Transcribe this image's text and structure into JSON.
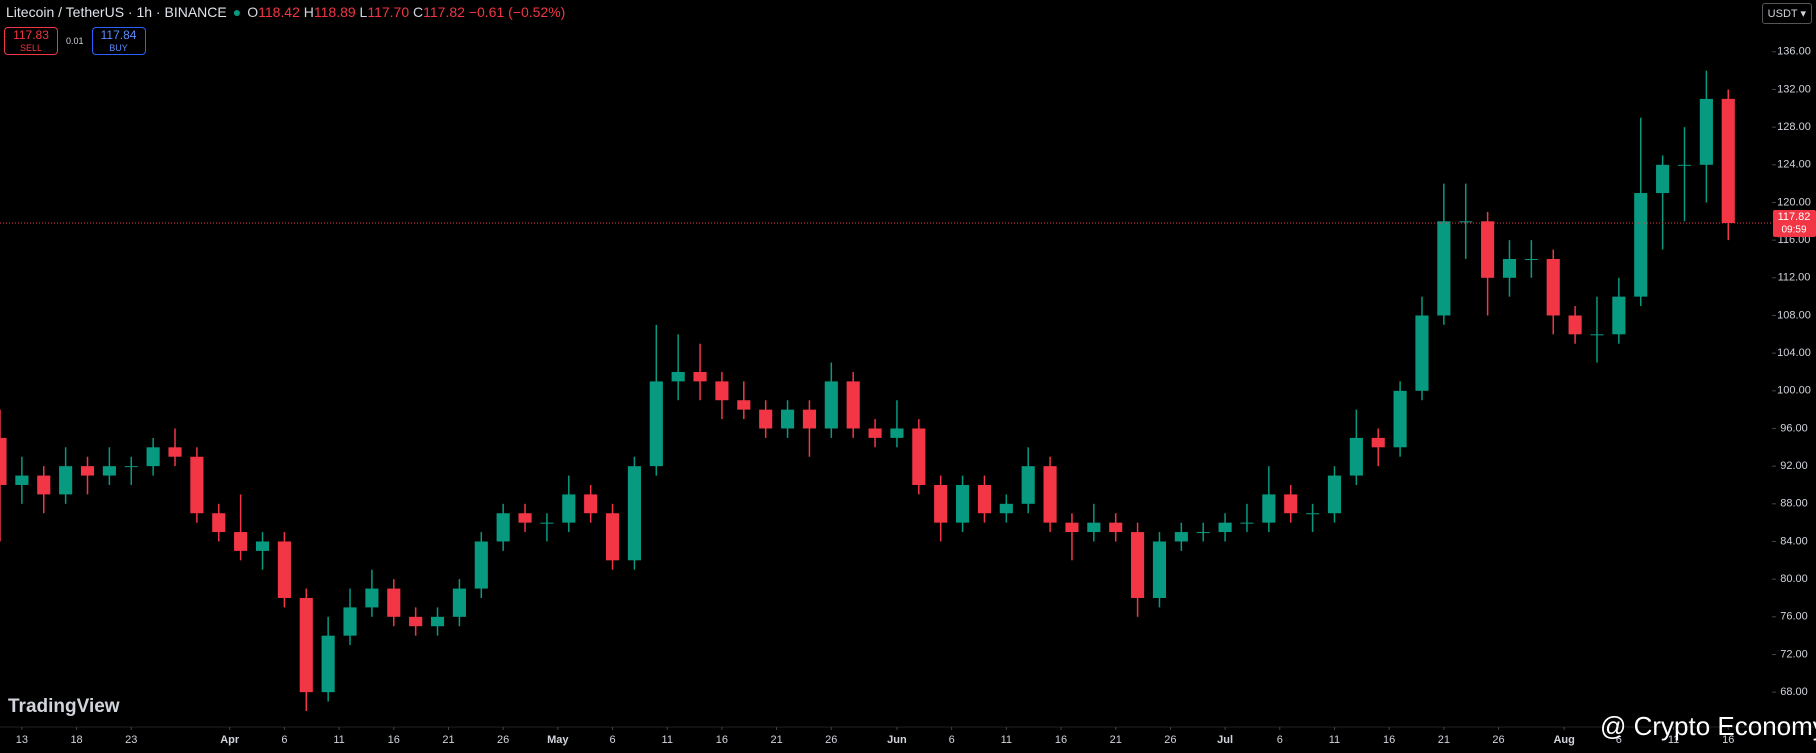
{
  "header": {
    "symbol": "Litecoin / TetherUS · 1h · BINANCE",
    "ohlc": [
      {
        "label": "O",
        "value": "118.42"
      },
      {
        "label": "H",
        "value": "118.89"
      },
      {
        "label": "L",
        "value": "117.70"
      },
      {
        "label": "C",
        "value": "117.82"
      }
    ],
    "change": "−0.61 (−0.52%)"
  },
  "trade": {
    "sell_price": "117.83",
    "sell_label": "SELL",
    "spread": "0.01",
    "buy_price": "117.84",
    "buy_label": "BUY"
  },
  "currency": "USDT",
  "watermark": "TradingView",
  "credit": "@ Crypto Economy",
  "chart_data": {
    "type": "candlestick",
    "up_color": "#089981",
    "down_color": "#f23645",
    "grid": false,
    "x": [
      "03-11",
      "03-13",
      "03-15",
      "03-17",
      "03-19",
      "03-21",
      "03-23",
      "03-25",
      "03-27",
      "03-29",
      "03-31",
      "04-02",
      "04-04",
      "04-06",
      "04-08",
      "04-10",
      "04-12",
      "04-14",
      "04-16",
      "04-18",
      "04-20",
      "04-22",
      "04-24",
      "04-26",
      "04-28",
      "04-30",
      "05-02",
      "05-04",
      "05-06",
      "05-08",
      "05-10",
      "05-12",
      "05-14",
      "05-16",
      "05-18",
      "05-20",
      "05-22",
      "05-24",
      "05-26",
      "05-28",
      "05-30",
      "06-01",
      "06-03",
      "06-05",
      "06-07",
      "06-09",
      "06-11",
      "06-13",
      "06-15",
      "06-17",
      "06-19",
      "06-21",
      "06-23",
      "06-25",
      "06-27",
      "06-29",
      "07-01",
      "07-03",
      "07-05",
      "07-07",
      "07-09",
      "07-11",
      "07-13",
      "07-15",
      "07-17",
      "07-19",
      "07-21",
      "07-23",
      "07-25",
      "07-27",
      "07-29",
      "07-31",
      "08-02",
      "08-04",
      "08-06",
      "08-08",
      "08-10",
      "08-12",
      "08-14",
      "08-16"
    ],
    "open": [
      95,
      90,
      91,
      89,
      92,
      91,
      92,
      92,
      94,
      93,
      87,
      85,
      83,
      84,
      78,
      68,
      74,
      77,
      79,
      76,
      75,
      76,
      79,
      84,
      87,
      86,
      86,
      89,
      87,
      82,
      92,
      101,
      102,
      101,
      99,
      98,
      96,
      98,
      96,
      101,
      96,
      95,
      96,
      90,
      86,
      90,
      87,
      88,
      92,
      86,
      85,
      86,
      85,
      78,
      84,
      85,
      85,
      86,
      86,
      89,
      87,
      87,
      91,
      95,
      94,
      100,
      108,
      118,
      118,
      112,
      114,
      114,
      108,
      106,
      106,
      110,
      121,
      124,
      124,
      131
    ],
    "high": [
      98,
      93,
      92,
      94,
      93,
      94,
      93,
      95,
      96,
      94,
      88,
      89,
      85,
      85,
      79,
      76,
      79,
      81,
      80,
      77,
      77,
      80,
      85,
      88,
      88,
      87,
      91,
      90,
      88,
      93,
      107,
      106,
      105,
      102,
      101,
      99,
      99,
      99,
      103,
      102,
      97,
      99,
      97,
      91,
      91,
      91,
      89,
      94,
      93,
      87,
      88,
      87,
      86,
      85,
      86,
      86,
      87,
      88,
      92,
      90,
      88,
      92,
      98,
      96,
      101,
      110,
      122,
      122,
      119,
      116,
      116,
      115,
      109,
      110,
      112,
      129,
      125,
      128,
      134,
      132
    ],
    "low": [
      84,
      88,
      87,
      88,
      89,
      90,
      90,
      91,
      92,
      86,
      84,
      82,
      81,
      77,
      66,
      67,
      73,
      76,
      75,
      74,
      74,
      75,
      78,
      83,
      85,
      84,
      85,
      86,
      81,
      81,
      91,
      99,
      99,
      97,
      97,
      95,
      95,
      93,
      95,
      95,
      94,
      94,
      89,
      84,
      85,
      86,
      86,
      87,
      85,
      82,
      84,
      84,
      76,
      77,
      83,
      84,
      84,
      85,
      85,
      86,
      85,
      86,
      90,
      92,
      93,
      99,
      107,
      114,
      108,
      110,
      112,
      106,
      105,
      103,
      105,
      109,
      115,
      118,
      120,
      116
    ],
    "close": [
      90,
      91,
      89,
      92,
      91,
      92,
      92,
      94,
      93,
      87,
      85,
      83,
      84,
      78,
      68,
      74,
      77,
      79,
      76,
      75,
      76,
      79,
      84,
      87,
      86,
      86,
      89,
      87,
      82,
      92,
      101,
      102,
      101,
      99,
      98,
      96,
      98,
      96,
      101,
      96,
      95,
      96,
      90,
      86,
      90,
      87,
      88,
      92,
      86,
      85,
      86,
      85,
      78,
      84,
      85,
      85,
      86,
      86,
      89,
      87,
      87,
      91,
      95,
      94,
      100,
      108,
      118,
      118,
      112,
      114,
      114,
      108,
      106,
      106,
      110,
      121,
      124,
      124,
      131,
      117.82
    ],
    "last_price": 117.82,
    "last_price_label": "117.82",
    "countdown": "09:59",
    "xlim": [
      "03-11",
      "08-20"
    ],
    "xticks": [
      {
        "value": "03-13",
        "label": "13"
      },
      {
        "value": "03-18",
        "label": "18"
      },
      {
        "value": "03-23",
        "label": "23"
      },
      {
        "value": "04-01",
        "label": "Apr"
      },
      {
        "value": "04-06",
        "label": "6"
      },
      {
        "value": "04-11",
        "label": "11"
      },
      {
        "value": "04-16",
        "label": "16"
      },
      {
        "value": "04-21",
        "label": "21"
      },
      {
        "value": "04-26",
        "label": "26"
      },
      {
        "value": "05-01",
        "label": "May"
      },
      {
        "value": "05-06",
        "label": "6"
      },
      {
        "value": "05-11",
        "label": "11"
      },
      {
        "value": "05-16",
        "label": "16"
      },
      {
        "value": "05-21",
        "label": "21"
      },
      {
        "value": "05-26",
        "label": "26"
      },
      {
        "value": "06-01",
        "label": "Jun"
      },
      {
        "value": "06-06",
        "label": "6"
      },
      {
        "value": "06-11",
        "label": "11"
      },
      {
        "value": "06-16",
        "label": "16"
      },
      {
        "value": "06-21",
        "label": "21"
      },
      {
        "value": "06-26",
        "label": "26"
      },
      {
        "value": "07-01",
        "label": "Jul"
      },
      {
        "value": "07-06",
        "label": "6"
      },
      {
        "value": "07-11",
        "label": "11"
      },
      {
        "value": "07-16",
        "label": "16"
      },
      {
        "value": "07-21",
        "label": "21"
      },
      {
        "value": "07-26",
        "label": "26"
      },
      {
        "value": "08-01",
        "label": "Aug"
      },
      {
        "value": "08-06",
        "label": "6"
      },
      {
        "value": "08-11",
        "label": "11"
      },
      {
        "value": "08-16",
        "label": "16"
      }
    ],
    "ylim": [
      64.3,
      141.5
    ],
    "yticks": [
      {
        "value": 68,
        "label": "68.00"
      },
      {
        "value": 72,
        "label": "72.00"
      },
      {
        "value": 76,
        "label": "76.00"
      },
      {
        "value": 80,
        "label": "80.00"
      },
      {
        "value": 84,
        "label": "84.00"
      },
      {
        "value": 88,
        "label": "88.00"
      },
      {
        "value": 92,
        "label": "92.00"
      },
      {
        "value": 96,
        "label": "96.00"
      },
      {
        "value": 100,
        "label": "100.00"
      },
      {
        "value": 104,
        "label": "104.00"
      },
      {
        "value": 108,
        "label": "108.00"
      },
      {
        "value": 112,
        "label": "112.00"
      },
      {
        "value": 116,
        "label": "116.00"
      },
      {
        "value": 120,
        "label": "120.00"
      },
      {
        "value": 124,
        "label": "124.00"
      },
      {
        "value": 128,
        "label": "128.00"
      },
      {
        "value": 132,
        "label": "132.00"
      },
      {
        "value": 136,
        "label": "136.00"
      }
    ]
  }
}
